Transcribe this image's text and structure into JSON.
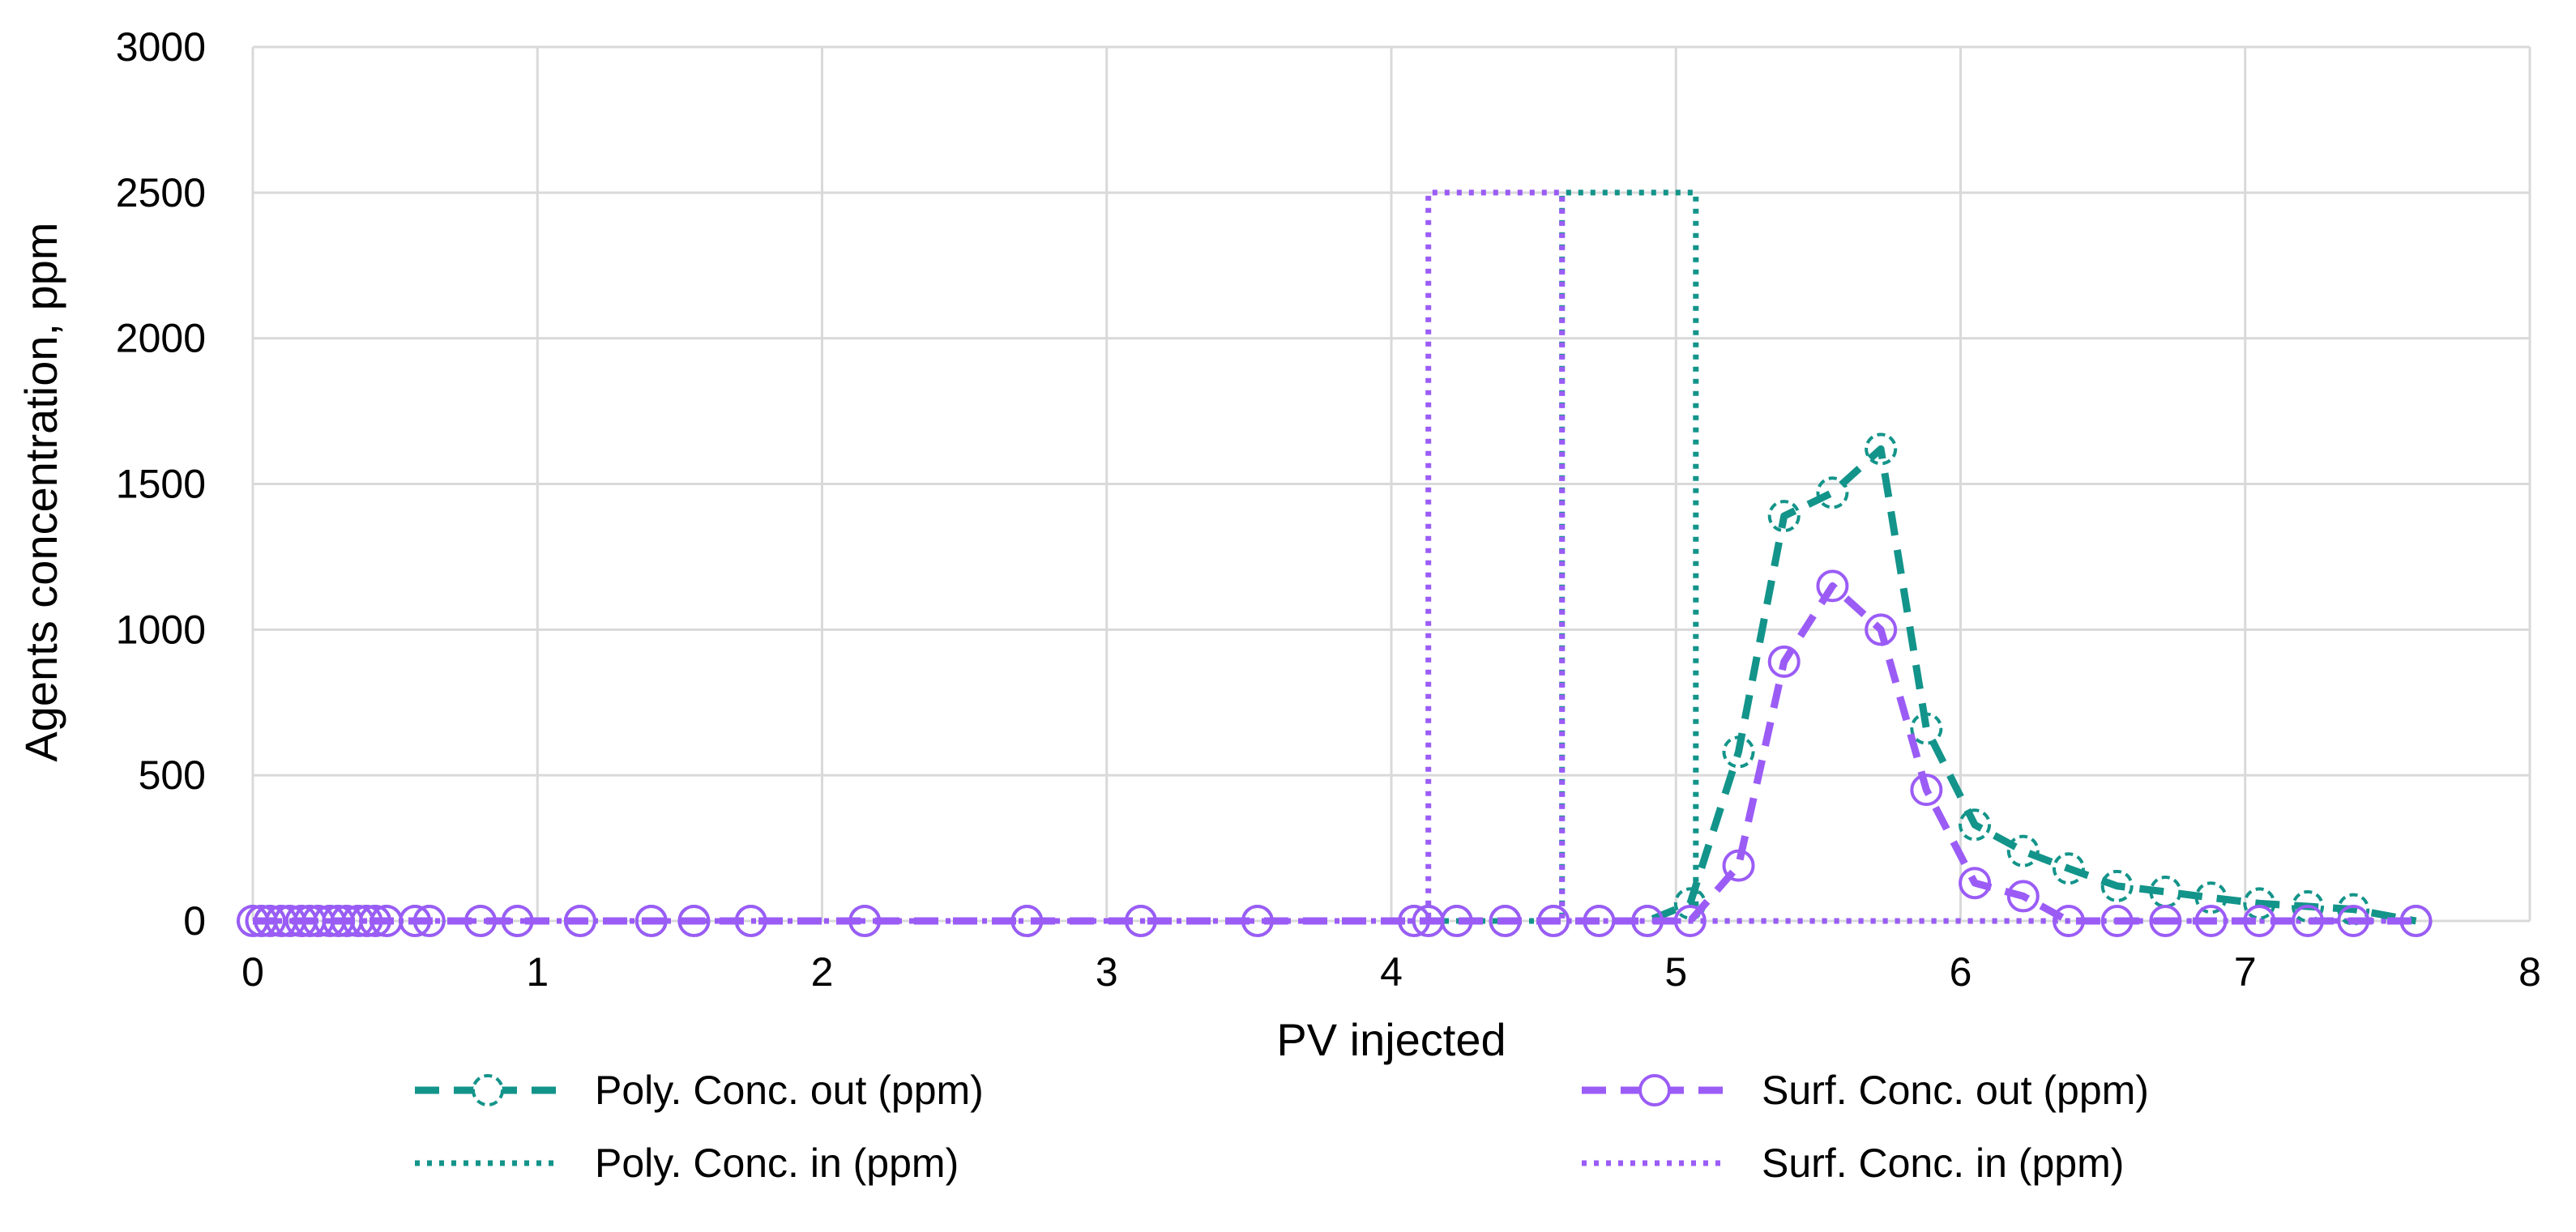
{
  "chart_data": {
    "type": "line",
    "title": "",
    "xlabel": "PV injected",
    "ylabel": "Agents concentration, ppm",
    "xlim": [
      0,
      8
    ],
    "ylim": [
      0,
      3000
    ],
    "x_ticks": [
      "0",
      "1",
      "2",
      "3",
      "4",
      "5",
      "6",
      "7",
      "8"
    ],
    "y_ticks": [
      "0",
      "500",
      "1000",
      "1500",
      "2000",
      "2500",
      "3000"
    ],
    "grid": true,
    "legend_position": "bottom",
    "series": [
      {
        "name": "Poly. Conc. out (ppm)",
        "color": "#13948a",
        "style": "dashed-markers",
        "x": [
          0,
          0.03,
          0.06,
          0.1,
          0.13,
          0.17,
          0.2,
          0.23,
          0.27,
          0.3,
          0.33,
          0.37,
          0.4,
          0.43,
          0.47,
          0.57,
          0.62,
          0.8,
          0.93,
          1.15,
          1.4,
          1.55,
          1.75,
          2.15,
          2.72,
          3.12,
          3.53,
          4.08,
          4.13,
          4.23,
          4.4,
          4.57,
          4.73,
          4.9,
          5.05,
          5.22,
          5.38,
          5.55,
          5.72,
          5.88,
          6.05,
          6.22,
          6.38,
          6.55,
          6.72,
          6.88,
          7.05,
          7.22,
          7.38,
          7.6
        ],
        "values": [
          0,
          0,
          0,
          0,
          0,
          0,
          0,
          0,
          0,
          0,
          0,
          0,
          0,
          0,
          0,
          0,
          0,
          0,
          0,
          0,
          0,
          0,
          0,
          0,
          0,
          0,
          0,
          0,
          0,
          0,
          0,
          0,
          0,
          0,
          60,
          580,
          1390,
          1470,
          1620,
          660,
          330,
          240,
          180,
          120,
          100,
          80,
          60,
          50,
          40,
          0
        ]
      },
      {
        "name": "Poly. Conc. in (ppm)",
        "color": "#13948a",
        "style": "dotted",
        "x": [
          0,
          4.6,
          4.6,
          5.07,
          5.07,
          7.6
        ],
        "values": [
          0,
          0,
          2500,
          2500,
          0,
          0
        ]
      },
      {
        "name": "Surf. Conc. out (ppm)",
        "color": "#9b5cf6",
        "style": "dashed-markers",
        "x": [
          0,
          0.03,
          0.06,
          0.1,
          0.13,
          0.17,
          0.2,
          0.23,
          0.27,
          0.3,
          0.33,
          0.37,
          0.4,
          0.43,
          0.47,
          0.57,
          0.62,
          0.8,
          0.93,
          1.15,
          1.4,
          1.55,
          1.75,
          2.15,
          2.72,
          3.12,
          3.53,
          4.08,
          4.13,
          4.23,
          4.4,
          4.57,
          4.73,
          4.9,
          5.05,
          5.22,
          5.38,
          5.55,
          5.72,
          5.88,
          6.05,
          6.22,
          6.38,
          6.55,
          6.72,
          6.88,
          7.05,
          7.22,
          7.38,
          7.6
        ],
        "values": [
          0,
          0,
          0,
          0,
          0,
          0,
          0,
          0,
          0,
          0,
          0,
          0,
          0,
          0,
          0,
          0,
          0,
          0,
          0,
          0,
          0,
          0,
          0,
          0,
          0,
          0,
          0,
          0,
          0,
          0,
          0,
          0,
          0,
          0,
          0,
          190,
          890,
          1150,
          1000,
          450,
          130,
          85,
          0,
          0,
          0,
          0,
          0,
          0,
          0,
          0
        ]
      },
      {
        "name": "Surf. Conc. in (ppm)",
        "color": "#9b5cf6",
        "style": "dotted",
        "x": [
          0,
          4.13,
          4.13,
          4.6,
          4.6,
          7.6
        ],
        "values": [
          0,
          0,
          2500,
          2500,
          0,
          0
        ]
      }
    ]
  }
}
